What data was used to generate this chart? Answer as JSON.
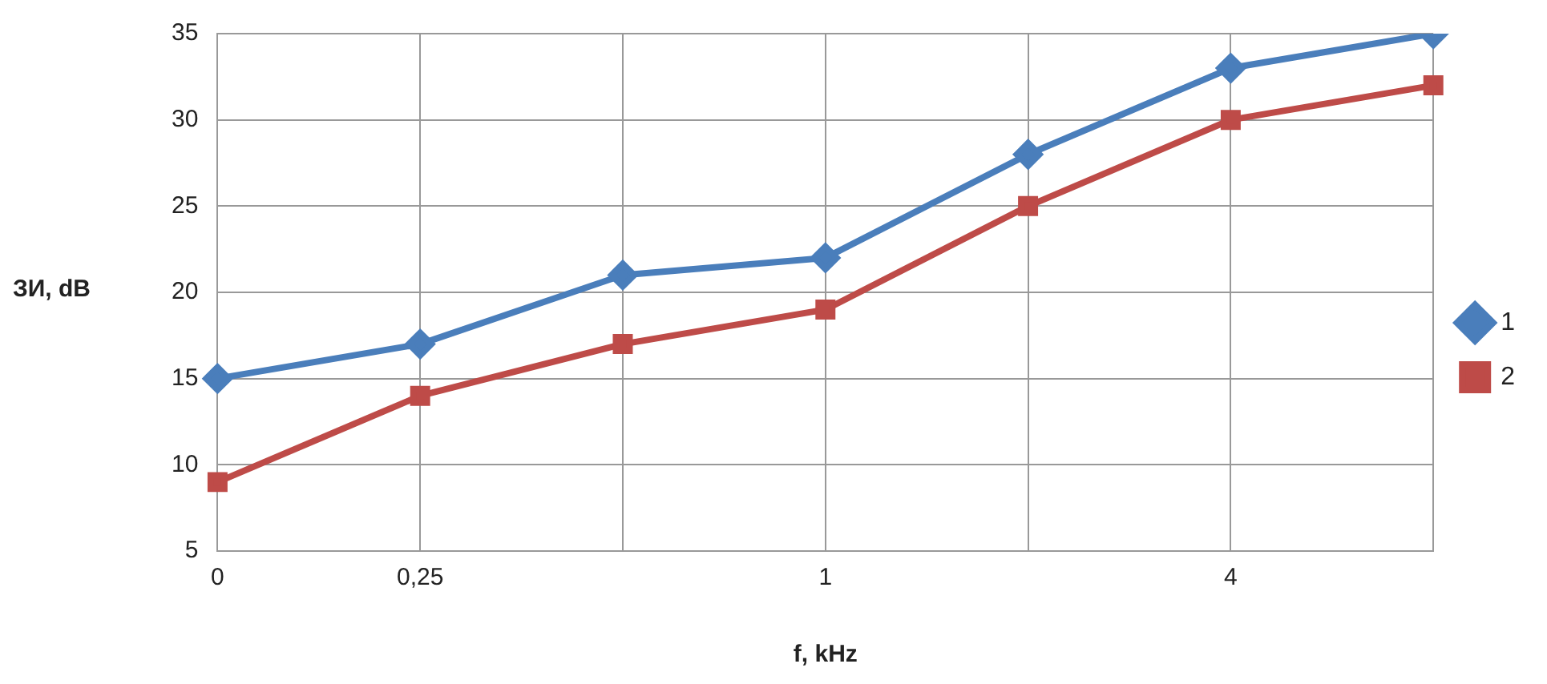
{
  "chart_data": {
    "type": "line",
    "xlabel": "f, kHz",
    "ylabel": "ЗИ, dB",
    "categories": [
      "0",
      "0,25",
      null,
      "1",
      null,
      "4",
      null
    ],
    "series": [
      {
        "name": "1",
        "color": "#4a7ebb",
        "marker": "diamond",
        "values": [
          15,
          17,
          21,
          22,
          28,
          33,
          35
        ]
      },
      {
        "name": "2",
        "color": "#be4b48",
        "marker": "square",
        "values": [
          9,
          14,
          17,
          19,
          25,
          30,
          32
        ]
      }
    ],
    "ylim": [
      5,
      35
    ],
    "yticks": [
      5,
      10,
      15,
      20,
      25,
      30,
      35
    ],
    "grid": true,
    "legend": "right",
    "line_style": "solid"
  }
}
